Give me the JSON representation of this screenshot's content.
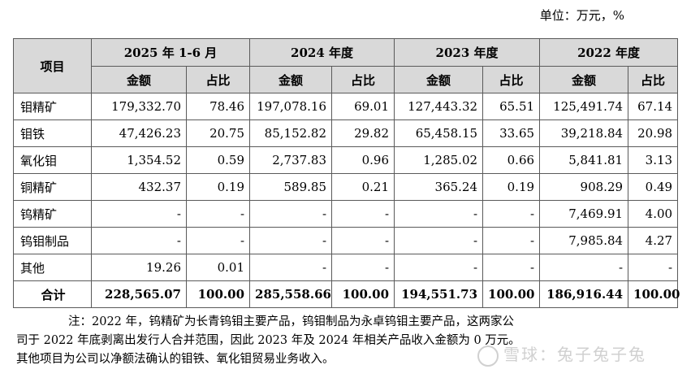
{
  "unit_label": "单位：万元，%",
  "header": {
    "item": "项目",
    "periods": [
      "2025 年 1-6 月",
      "2024 年度",
      "2023 年度",
      "2022 年度"
    ],
    "amount": "金额",
    "ratio": "占比"
  },
  "rows": [
    {
      "label": "钼精矿",
      "cells": [
        "179,332.70",
        "78.46",
        "197,078.16",
        "69.01",
        "127,443.32",
        "65.51",
        "125,491.74",
        "67.14"
      ]
    },
    {
      "label": "钼铁",
      "cells": [
        "47,426.23",
        "20.75",
        "85,152.82",
        "29.82",
        "65,458.15",
        "33.65",
        "39,218.84",
        "20.98"
      ]
    },
    {
      "label": "氧化钼",
      "cells": [
        "1,354.52",
        "0.59",
        "2,737.83",
        "0.96",
        "1,285.02",
        "0.66",
        "5,841.81",
        "3.13"
      ]
    },
    {
      "label": "铜精矿",
      "cells": [
        "432.37",
        "0.19",
        "589.85",
        "0.21",
        "365.24",
        "0.19",
        "908.29",
        "0.49"
      ]
    },
    {
      "label": "钨精矿",
      "cells": [
        "-",
        "-",
        "-",
        "-",
        "-",
        "-",
        "7,469.91",
        "4.00"
      ]
    },
    {
      "label": "钨钼制品",
      "cells": [
        "-",
        "-",
        "-",
        "-",
        "-",
        "-",
        "7,985.84",
        "4.27"
      ]
    },
    {
      "label": "其他",
      "cells": [
        "19.26",
        "0.01",
        "-",
        "-",
        "-",
        "-",
        "-",
        "-"
      ]
    }
  ],
  "total": {
    "label": "合计",
    "cells": [
      "228,565.07",
      "100.00",
      "285,558.66",
      "100.00",
      "194,551.73",
      "100.00",
      "186,916.44",
      "100.00"
    ]
  },
  "note": {
    "line1": "注：2022 年，钨精矿为长青钨钼主要产品，钨钼制品为永卓钨钼主要产品，这两家公",
    "line2": "司于 2022 年底剥离出发行人合并范围，因此 2023 年及 2024 年相关产品收入金额为 0 万元。",
    "line3": "其他项目为公司以净额法确认的钼铁、氧化钼贸易业务收入。"
  },
  "watermark": "雪球：兔子兔子兔"
}
